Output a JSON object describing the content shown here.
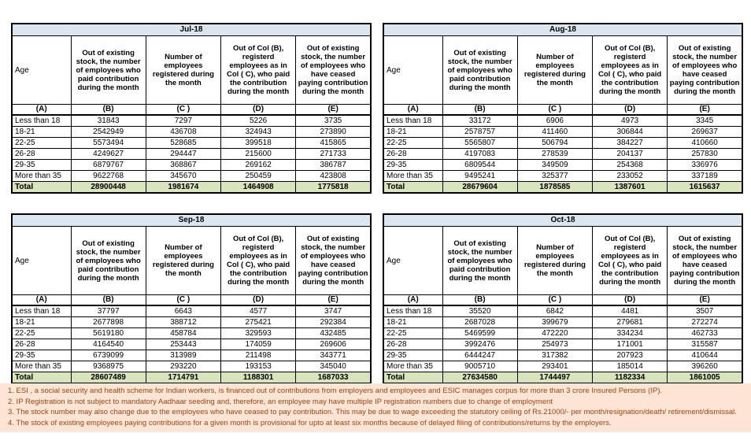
{
  "colors": {
    "month_header_bg": "#dce6f1",
    "total_row_bg": "#d7e4bc",
    "table_border": "#000000",
    "notes_bg": "#fce5d5",
    "notes_text": "#9c4315"
  },
  "headers": {
    "age": "Age",
    "col_b": "Out of existing stock, the number of employees who paid contribution during the month",
    "col_c": "Number of employees registered during the month",
    "col_d": "Out of Col (B), registerd employees as in Col ( C), who paid the contribution during the month",
    "col_e": "Out of existing stock, the number of  employees who have ceased paying contribution during the month",
    "letters": [
      "(A)",
      "(B)",
      "(C )",
      "(D)",
      "(E)"
    ]
  },
  "tables": [
    {
      "month": "Jul-18",
      "rows": [
        {
          "age": "Less than 18",
          "values": [
            "31843",
            "7297",
            "5226",
            "3735"
          ]
        },
        {
          "age": "18-21",
          "values": [
            "2542949",
            "436708",
            "324943",
            "273890"
          ]
        },
        {
          "age": "22-25",
          "values": [
            "5573494",
            "528685",
            "399518",
            "415865"
          ]
        },
        {
          "age": "26-28",
          "values": [
            "4249627",
            "294447",
            "215600",
            "271733"
          ]
        },
        {
          "age": "29-35",
          "values": [
            "6879767",
            "368867",
            "269162",
            "386787"
          ]
        },
        {
          "age": "More than 35",
          "values": [
            "9622768",
            "345670",
            "250459",
            "423808"
          ]
        }
      ],
      "total": {
        "label": "Total",
        "values": [
          "28900448",
          "1981674",
          "1464908",
          "1775818"
        ]
      }
    },
    {
      "month": "Aug-18",
      "rows": [
        {
          "age": "Less than 18",
          "values": [
            "33172",
            "6906",
            "4973",
            "3345"
          ]
        },
        {
          "age": "18-21",
          "values": [
            "2578757",
            "411460",
            "306844",
            "269637"
          ]
        },
        {
          "age": "22-25",
          "values": [
            "5565807",
            "506794",
            "384227",
            "410660"
          ]
        },
        {
          "age": "26-28",
          "values": [
            "4197083",
            "278539",
            "204137",
            "257830"
          ]
        },
        {
          "age": "29-35",
          "values": [
            "6809544",
            "349509",
            "254368",
            "336976"
          ]
        },
        {
          "age": "More than 35",
          "values": [
            "9495241",
            "325377",
            "233052",
            "337189"
          ]
        }
      ],
      "total": {
        "label": "Total",
        "values": [
          "28679604",
          "1878585",
          "1387601",
          "1615637"
        ]
      }
    },
    {
      "month": "Sep-18",
      "rows": [
        {
          "age": "Less than 18",
          "values": [
            "37797",
            "6643",
            "4577",
            "3747"
          ]
        },
        {
          "age": "18-21",
          "values": [
            "2677898",
            "388712",
            "275421",
            "292384"
          ]
        },
        {
          "age": "22-25",
          "values": [
            "5619180",
            "458784",
            "329593",
            "432485"
          ]
        },
        {
          "age": "26-28",
          "values": [
            "4164540",
            "253443",
            "174059",
            "269606"
          ]
        },
        {
          "age": "29-35",
          "values": [
            "6739099",
            "313989",
            "211498",
            "343771"
          ]
        },
        {
          "age": "More than 35",
          "values": [
            "9368975",
            "293220",
            "193153",
            "345040"
          ]
        }
      ],
      "total": {
        "label": "Total",
        "values": [
          "28607489",
          "1714791",
          "1188301",
          "1687033"
        ]
      }
    },
    {
      "month": "Oct-18",
      "rows": [
        {
          "age": "Less than 18",
          "values": [
            "35520",
            "6842",
            "4481",
            "3507"
          ]
        },
        {
          "age": "18-21",
          "values": [
            "2687028",
            "399679",
            "279681",
            "272274"
          ]
        },
        {
          "age": "22-25",
          "values": [
            "5469599",
            "472220",
            "334234",
            "462733"
          ]
        },
        {
          "age": "26-28",
          "values": [
            "3992476",
            "254973",
            "171001",
            "315587"
          ]
        },
        {
          "age": "29-35",
          "values": [
            "6444247",
            "317382",
            "207923",
            "410644"
          ]
        },
        {
          "age": "More than 35",
          "values": [
            "9005710",
            "293401",
            "185014",
            "396260"
          ]
        }
      ],
      "total": {
        "label": "Total",
        "values": [
          "27634580",
          "1744497",
          "1182334",
          "1861005"
        ]
      }
    }
  ],
  "notes": [
    "1. ESI , a social security and health scheme for Indian workers, is financed out of contributions from employers and employees and ESIC manages corpus for more than 3 crore Insured Persons (IP).",
    "2. IP Registration is not subject to mandatory Aadhaar seeding and, therefore, an employee may have multiple IP registration numbers due to change of employment",
    "3. The stock number may also change due to the employees who have ceased to pay contribution. This may  be due to wage exceeding the statutory ceiling of  Rs.21000/- per month/resignation/death/ retirement/dismissal.",
    "4. The stock of existing employees paying contributions for a given month is provisional for upto at least six months because of delayed filing of contributions/returns by the employers."
  ]
}
